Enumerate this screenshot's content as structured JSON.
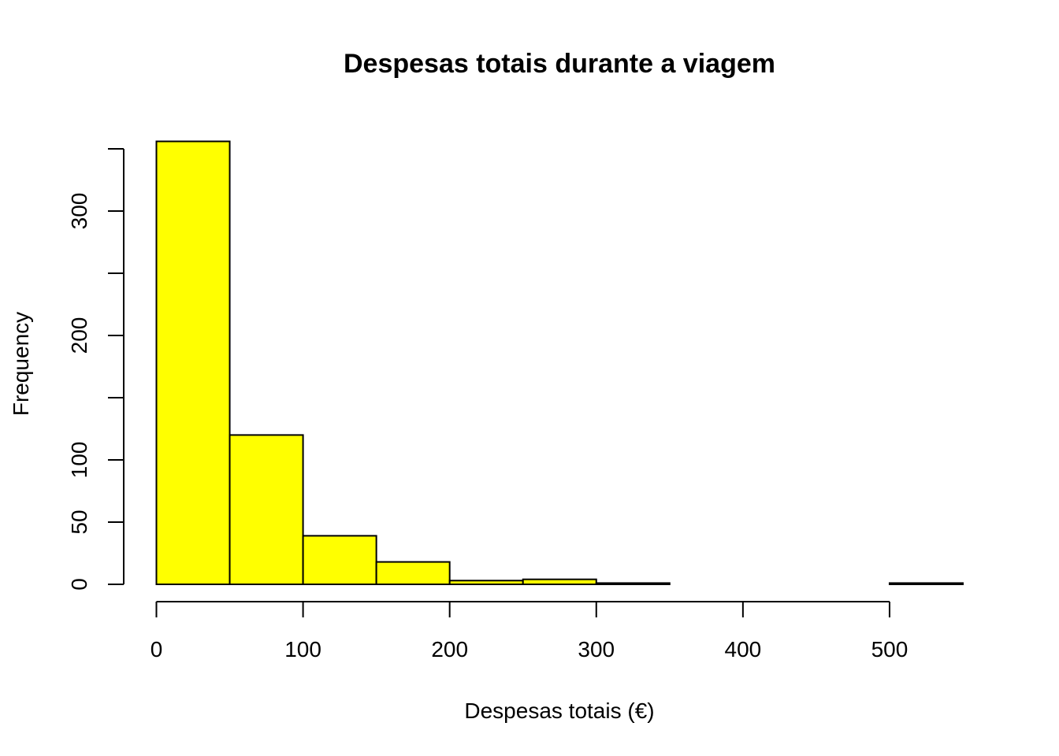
{
  "chart_data": {
    "type": "bar",
    "title": "Despesas totais durante a viagem",
    "xlabel": "Despesas totais (€)",
    "ylabel": "Frequency",
    "bin_edges": [
      0,
      50,
      100,
      150,
      200,
      250,
      300,
      350,
      400,
      450,
      500,
      550
    ],
    "values": [
      356,
      120,
      39,
      18,
      3,
      4,
      1,
      0,
      0,
      0,
      1
    ],
    "x_ticks": [
      0,
      100,
      200,
      300,
      400,
      500
    ],
    "x_tick_labels": [
      "0",
      "100",
      "200",
      "300",
      "400",
      "500"
    ],
    "y_ticks": [
      0,
      50,
      100,
      150,
      200,
      250,
      300,
      350
    ],
    "y_tick_labels": [
      "0",
      "50",
      "100",
      "",
      "200",
      "",
      "300",
      ""
    ],
    "xlim": [
      0,
      550
    ],
    "ylim": [
      0,
      350
    ],
    "grid": false,
    "bar_color": "#ffff00"
  }
}
